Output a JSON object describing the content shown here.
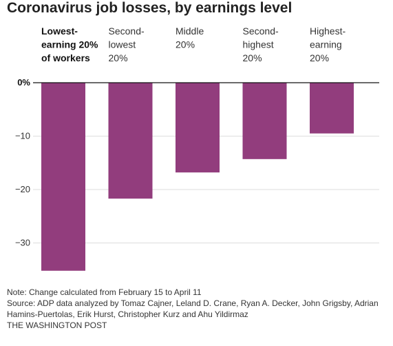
{
  "title": "Coronavirus job losses, by earnings level",
  "note": "Note: Change calculated from February 15 to April 11",
  "source": "Source: ADP data analyzed by Tomaz Cajner, Leland D. Crane, Ryan A. Decker, John Grigsby, Adrian Hamins-Puertolas, Erik Hurst, Christopher Kurz and Ahu Yildirmaz",
  "credit": "THE WASHINGTON POST",
  "colors": {
    "bar": "#923d7d",
    "grid": "#dddddd",
    "axis": "#111111"
  },
  "chart_data": {
    "type": "bar",
    "title": "Coronavirus job losses, by earnings level",
    "xlabel": "",
    "ylabel": "",
    "ylim": [
      -35,
      0
    ],
    "grid": true,
    "legend": "none",
    "y_ticks": [
      "0%",
      "−10",
      "−20",
      "−30"
    ],
    "y_tick_values": [
      0,
      -10,
      -20,
      -30
    ],
    "categories": [
      [
        "Lowest-",
        "earning 20%",
        "of workers"
      ],
      [
        "Second-",
        "lowest",
        "20%"
      ],
      [
        "Middle",
        "20%"
      ],
      [
        "Second-",
        "highest",
        "20%"
      ],
      [
        "Highest-",
        "earning",
        "20%"
      ]
    ],
    "emphasized_category": 0,
    "values": [
      -35.2,
      -21.7,
      -16.8,
      -14.3,
      -9.5
    ]
  }
}
